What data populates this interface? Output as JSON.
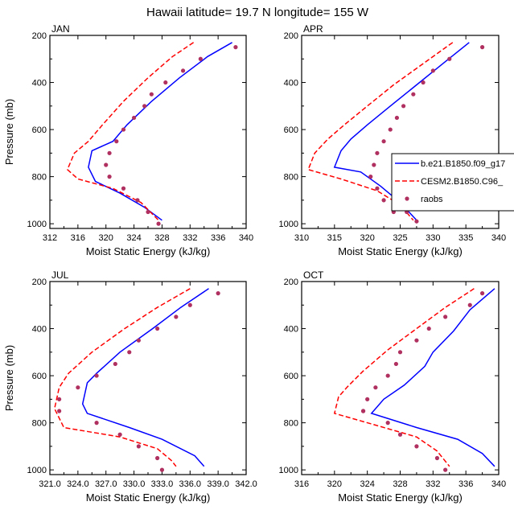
{
  "title": "Hawaii  latitude= 19.7 N longitude= 155 W",
  "colors": {
    "series1": "#0000ff",
    "series2": "#ff0000",
    "raobs": "#b03060",
    "axis": "#000000"
  },
  "legend": {
    "entries": [
      {
        "label": "b.e21.B1850.f09_g17",
        "style": "solid",
        "color": "#0000ff"
      },
      {
        "label": "CESM2.B1850.C96_",
        "style": "dashed",
        "color": "#ff0000"
      },
      {
        "label": "raobs",
        "style": "marker",
        "color": "#b03060"
      }
    ],
    "placement": "right of APR panel"
  },
  "chart_data": [
    {
      "type": "line",
      "panel": "JAN",
      "xlabel": "Moist Static Energy (kJ/kg)",
      "ylabel": "Pressure (mb)",
      "xlim": [
        312,
        340
      ],
      "xticks": [
        312,
        316,
        320,
        324,
        328,
        332,
        336,
        340
      ],
      "xtick_labels": [
        "312",
        "316",
        "320",
        "324",
        "328",
        "332",
        "336",
        "340"
      ],
      "ylim": [
        1020,
        200
      ],
      "yticks": [
        200,
        400,
        600,
        800,
        1000
      ],
      "ytick_labels": [
        "200",
        "400",
        "600",
        "800",
        "1000"
      ],
      "series": [
        {
          "name": "b.e21.B1850.f09_g17",
          "style": "solid",
          "color": "#0000ff",
          "x": [
            338.0,
            334.5,
            330.5,
            326.5,
            323.0,
            321.0,
            318.0,
            317.5,
            318.5,
            322.0,
            325.5,
            328.0
          ],
          "y": [
            230,
            290,
            380,
            480,
            580,
            650,
            690,
            760,
            820,
            870,
            930,
            985
          ]
        },
        {
          "name": "CESM2.B1850.C96_",
          "style": "dashed",
          "color": "#ff0000",
          "x": [
            332.5,
            329.5,
            326.0,
            322.5,
            319.5,
            317.5,
            315.5,
            314.5,
            316.0,
            321.0,
            325.0,
            327.5
          ],
          "y": [
            230,
            290,
            380,
            480,
            580,
            650,
            700,
            770,
            810,
            850,
            910,
            985
          ]
        },
        {
          "name": "raobs",
          "style": "marker",
          "color": "#b03060",
          "x": [
            338.5,
            333.5,
            331.0,
            328.5,
            326.5,
            325.5,
            324.0,
            322.5,
            321.5,
            320.5,
            320.0,
            320.5,
            322.5,
            324.5,
            326.0,
            327.5
          ],
          "y": [
            250,
            300,
            350,
            400,
            450,
            500,
            550,
            600,
            650,
            700,
            750,
            800,
            850,
            900,
            950,
            1000
          ]
        }
      ]
    },
    {
      "type": "line",
      "panel": "APR",
      "xlabel": "Moist Static Energy (kJ/kg)",
      "ylabel": "",
      "xlim": [
        310,
        340
      ],
      "xticks": [
        310,
        315,
        320,
        325,
        330,
        335,
        340
      ],
      "xtick_labels": [
        "310",
        "315",
        "320",
        "325",
        "330",
        "335",
        "340"
      ],
      "ylim": [
        1020,
        200
      ],
      "yticks": [
        200,
        400,
        600,
        800,
        1000
      ],
      "ytick_labels": [
        "200",
        "400",
        "600",
        "800",
        "1000"
      ],
      "series": [
        {
          "name": "b.e21.B1850.f09_g17",
          "style": "solid",
          "color": "#0000ff",
          "x": [
            335.5,
            331.5,
            327.5,
            323.5,
            320.0,
            317.5,
            316.0,
            315.0,
            319.0,
            322.0,
            325.0,
            327.5
          ],
          "y": [
            230,
            320,
            410,
            500,
            580,
            640,
            690,
            760,
            780,
            840,
            910,
            985
          ]
        },
        {
          "name": "CESM2.B1850.C96_",
          "style": "dashed",
          "color": "#ff0000",
          "x": [
            333.0,
            328.5,
            324.0,
            320.0,
            316.5,
            314.0,
            312.0,
            311.0,
            316.0,
            321.5,
            325.0,
            327.0
          ],
          "y": [
            230,
            320,
            410,
            500,
            580,
            640,
            700,
            770,
            810,
            860,
            920,
            985
          ]
        },
        {
          "name": "raobs",
          "style": "marker",
          "color": "#b03060",
          "x": [
            337.5,
            332.5,
            330.0,
            328.5,
            327.0,
            325.5,
            324.5,
            323.5,
            322.5,
            321.5,
            321.0,
            320.5,
            321.5,
            322.5,
            324.0,
            326.0,
            327.5
          ],
          "y": [
            250,
            300,
            350,
            400,
            450,
            500,
            550,
            600,
            650,
            700,
            750,
            800,
            850,
            900,
            950,
            950,
            990
          ]
        }
      ]
    },
    {
      "type": "line",
      "panel": "JUL",
      "xlabel": "Moist Static Energy (kJ/kg)",
      "ylabel": "Pressure (mb)",
      "xlim": [
        321,
        342
      ],
      "xticks": [
        321,
        324,
        327,
        330,
        333,
        336,
        339,
        342
      ],
      "xtick_labels": [
        "321.0",
        "324.0",
        "327.0",
        "330.0",
        "333.0",
        "336.0",
        "339.0",
        "342.0"
      ],
      "ylim": [
        1020,
        200
      ],
      "yticks": [
        200,
        400,
        600,
        800,
        1000
      ],
      "ytick_labels": [
        "200",
        "400",
        "600",
        "800",
        "1000"
      ],
      "series": [
        {
          "name": "b.e21.B1850.f09_g17",
          "style": "solid",
          "color": "#0000ff",
          "x": [
            338.0,
            335.0,
            332.0,
            328.5,
            326.0,
            325.0,
            324.5,
            325.0,
            329.5,
            333.0,
            336.5,
            337.5
          ],
          "y": [
            230,
            310,
            400,
            500,
            590,
            630,
            720,
            760,
            820,
            870,
            940,
            985
          ]
        },
        {
          "name": "CESM2.B1850.C96_",
          "style": "dashed",
          "color": "#ff0000",
          "x": [
            336.0,
            332.5,
            329.0,
            325.5,
            323.0,
            322.0,
            321.5,
            322.5,
            328.5,
            332.5,
            334.0,
            334.5
          ],
          "y": [
            230,
            310,
            400,
            500,
            590,
            650,
            740,
            820,
            860,
            910,
            960,
            985
          ]
        },
        {
          "name": "raobs",
          "style": "marker",
          "color": "#b03060",
          "x": [
            339.0,
            336.0,
            334.5,
            332.5,
            330.5,
            329.5,
            328.0,
            326.0,
            324.0,
            322.0,
            322.0,
            326.0,
            328.5,
            330.5,
            332.5,
            333.0
          ],
          "y": [
            250,
            300,
            350,
            400,
            450,
            500,
            550,
            600,
            650,
            700,
            750,
            800,
            850,
            900,
            950,
            1000
          ]
        }
      ]
    },
    {
      "type": "line",
      "panel": "OCT",
      "xlabel": "Moist Static Energy (kJ/kg)",
      "ylabel": "",
      "xlim": [
        316,
        340
      ],
      "xticks": [
        316,
        320,
        324,
        328,
        332,
        336,
        340
      ],
      "xtick_labels": [
        "316",
        "320",
        "324",
        "328",
        "332",
        "336",
        "340"
      ],
      "ylim": [
        1020,
        200
      ],
      "yticks": [
        200,
        400,
        600,
        800,
        1000
      ],
      "ytick_labels": [
        "200",
        "400",
        "600",
        "800",
        "1000"
      ],
      "series": [
        {
          "name": "b.e21.B1850.f09_g17",
          "style": "solid",
          "color": "#0000ff",
          "x": [
            339.5,
            336.5,
            334.5,
            332.0,
            331.0,
            328.5,
            326.0,
            324.5,
            330.0,
            335.0,
            338.0,
            339.5
          ],
          "y": [
            230,
            320,
            410,
            500,
            560,
            640,
            700,
            760,
            820,
            870,
            930,
            985
          ]
        },
        {
          "name": "CESM2.B1850.C96_",
          "style": "dashed",
          "color": "#ff0000",
          "x": [
            337.0,
            333.5,
            330.0,
            326.5,
            323.5,
            321.5,
            320.5,
            320.0,
            325.0,
            330.0,
            332.5,
            334.0
          ],
          "y": [
            230,
            310,
            400,
            490,
            580,
            650,
            690,
            760,
            810,
            860,
            920,
            985
          ]
        },
        {
          "name": "raobs",
          "style": "marker",
          "color": "#b03060",
          "x": [
            338.0,
            336.5,
            333.5,
            331.5,
            330.0,
            328.0,
            327.5,
            326.5,
            325.0,
            324.0,
            323.5,
            323.5,
            326.5,
            328.0,
            330.0,
            332.5,
            333.5
          ],
          "y": [
            250,
            300,
            350,
            400,
            450,
            500,
            550,
            600,
            650,
            700,
            750,
            750,
            800,
            850,
            900,
            950,
            1000
          ]
        }
      ]
    }
  ]
}
